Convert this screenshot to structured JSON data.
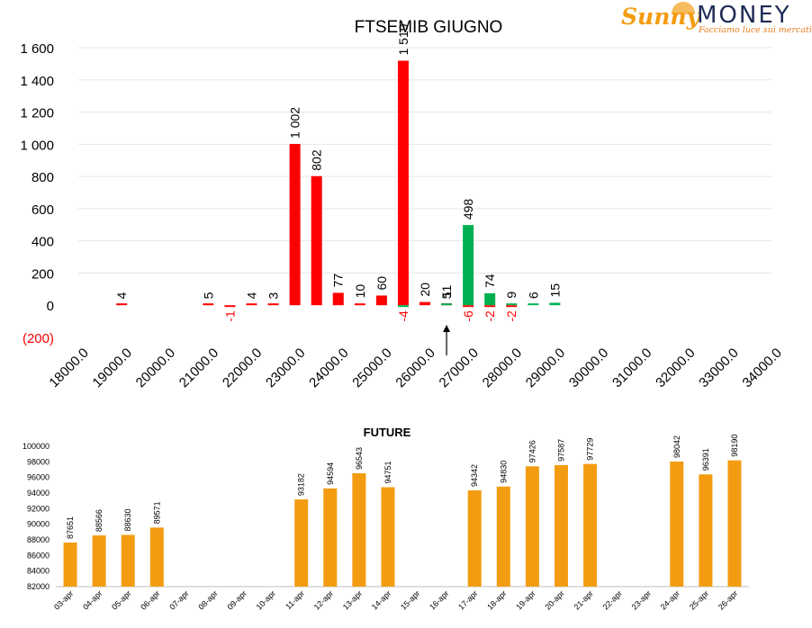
{
  "logo": {
    "name_part1": "Sunny",
    "name_part2": "MONEY",
    "tagline": "Facciamo luce sui mercati",
    "colors": {
      "sunny": "#f39c12",
      "money": "#1f2c57",
      "tagline": "#e67e22"
    }
  },
  "chart_data": [
    {
      "type": "bar",
      "title": "FTSEMIB GIUGNO",
      "xlabel": "",
      "ylabel": "",
      "ylim": [
        -200,
        1600
      ],
      "yticks": [
        -200,
        0,
        200,
        400,
        600,
        800,
        1000,
        1200,
        1400,
        1600
      ],
      "ytick_labels": [
        "(200)",
        "0",
        "200",
        "400",
        "600",
        "800",
        "1 000",
        "1 200",
        "1 400",
        "1 600"
      ],
      "xlim": [
        18000,
        34000
      ],
      "xticks": [
        18000,
        19000,
        20000,
        21000,
        22000,
        23000,
        24000,
        25000,
        26000,
        27000,
        28000,
        29000,
        30000,
        31000,
        32000,
        33000,
        34000
      ],
      "xtick_labels": [
        "18000.0",
        "19000.0",
        "20000.0",
        "21000.0",
        "22000.0",
        "23000.0",
        "24000.0",
        "25000.0",
        "26000.0",
        "27000.0",
        "28000.0",
        "29000.0",
        "30000.0",
        "31000.0",
        "32000.0",
        "33000.0",
        "34000.0"
      ],
      "grid": "horizontal",
      "colors": {
        "puts": "#ff0000",
        "calls": "#00b050",
        "negative_label": "#ff0000"
      },
      "series": [
        {
          "x": [
            19000,
            21000,
            21500,
            22000,
            22500,
            23000,
            23500,
            24000,
            24500,
            25000,
            25500,
            26000,
            26500,
            27000,
            27500,
            28000,
            28500
          ],
          "values": [
            4,
            5,
            -1,
            4,
            3,
            1002,
            802,
            77,
            10,
            60,
            1519,
            20,
            11,
            -6,
            -2,
            -2,
            null
          ],
          "labels": [
            "4",
            "5",
            "-1",
            "4",
            "3",
            "1 002",
            "802",
            "77",
            "10",
            "60",
            "1 519",
            "20",
            "11",
            "-6",
            "-2",
            "-2",
            ""
          ],
          "color_key": "puts"
        },
        {
          "x": [
            25500,
            26500,
            27000,
            27500,
            28000,
            28500,
            29000
          ],
          "values": [
            -4,
            5,
            498,
            74,
            9,
            6,
            15
          ],
          "labels": [
            "-4",
            "5",
            "498",
            "74",
            "9",
            "6",
            "15"
          ],
          "color_key": "calls"
        }
      ],
      "annotations": [
        {
          "type": "arrow",
          "x": 26500,
          "points_to": "x-axis"
        }
      ]
    },
    {
      "type": "bar",
      "title": "FUTURE",
      "xlabel": "",
      "ylabel": "",
      "ylim": [
        82000,
        100000
      ],
      "yticks": [
        82000,
        84000,
        86000,
        88000,
        90000,
        92000,
        94000,
        96000,
        98000,
        100000
      ],
      "ytick_labels": [
        "82000",
        "84000",
        "86000",
        "88000",
        "90000",
        "92000",
        "94000",
        "96000",
        "98000",
        "100000"
      ],
      "categories": [
        "03-apr",
        "04-apr",
        "05-apr",
        "06-apr",
        "07-apr",
        "08-apr",
        "09-apr",
        "10-apr",
        "11-apr",
        "12-apr",
        "13-apr",
        "14-apr",
        "15-apr",
        "16-apr",
        "17-apr",
        "18-apr",
        "19-apr",
        "20-apr",
        "21-apr",
        "22-apr",
        "23-apr",
        "24-apr",
        "25-apr",
        "26-apr"
      ],
      "values": [
        87651,
        88566,
        88630,
        89571,
        null,
        null,
        null,
        null,
        93182,
        94594,
        96543,
        94751,
        null,
        null,
        94342,
        94830,
        97426,
        97587,
        97729,
        null,
        null,
        98042,
        96391,
        98190
      ],
      "bar_color": "#f39c12",
      "grid": "none"
    }
  ]
}
